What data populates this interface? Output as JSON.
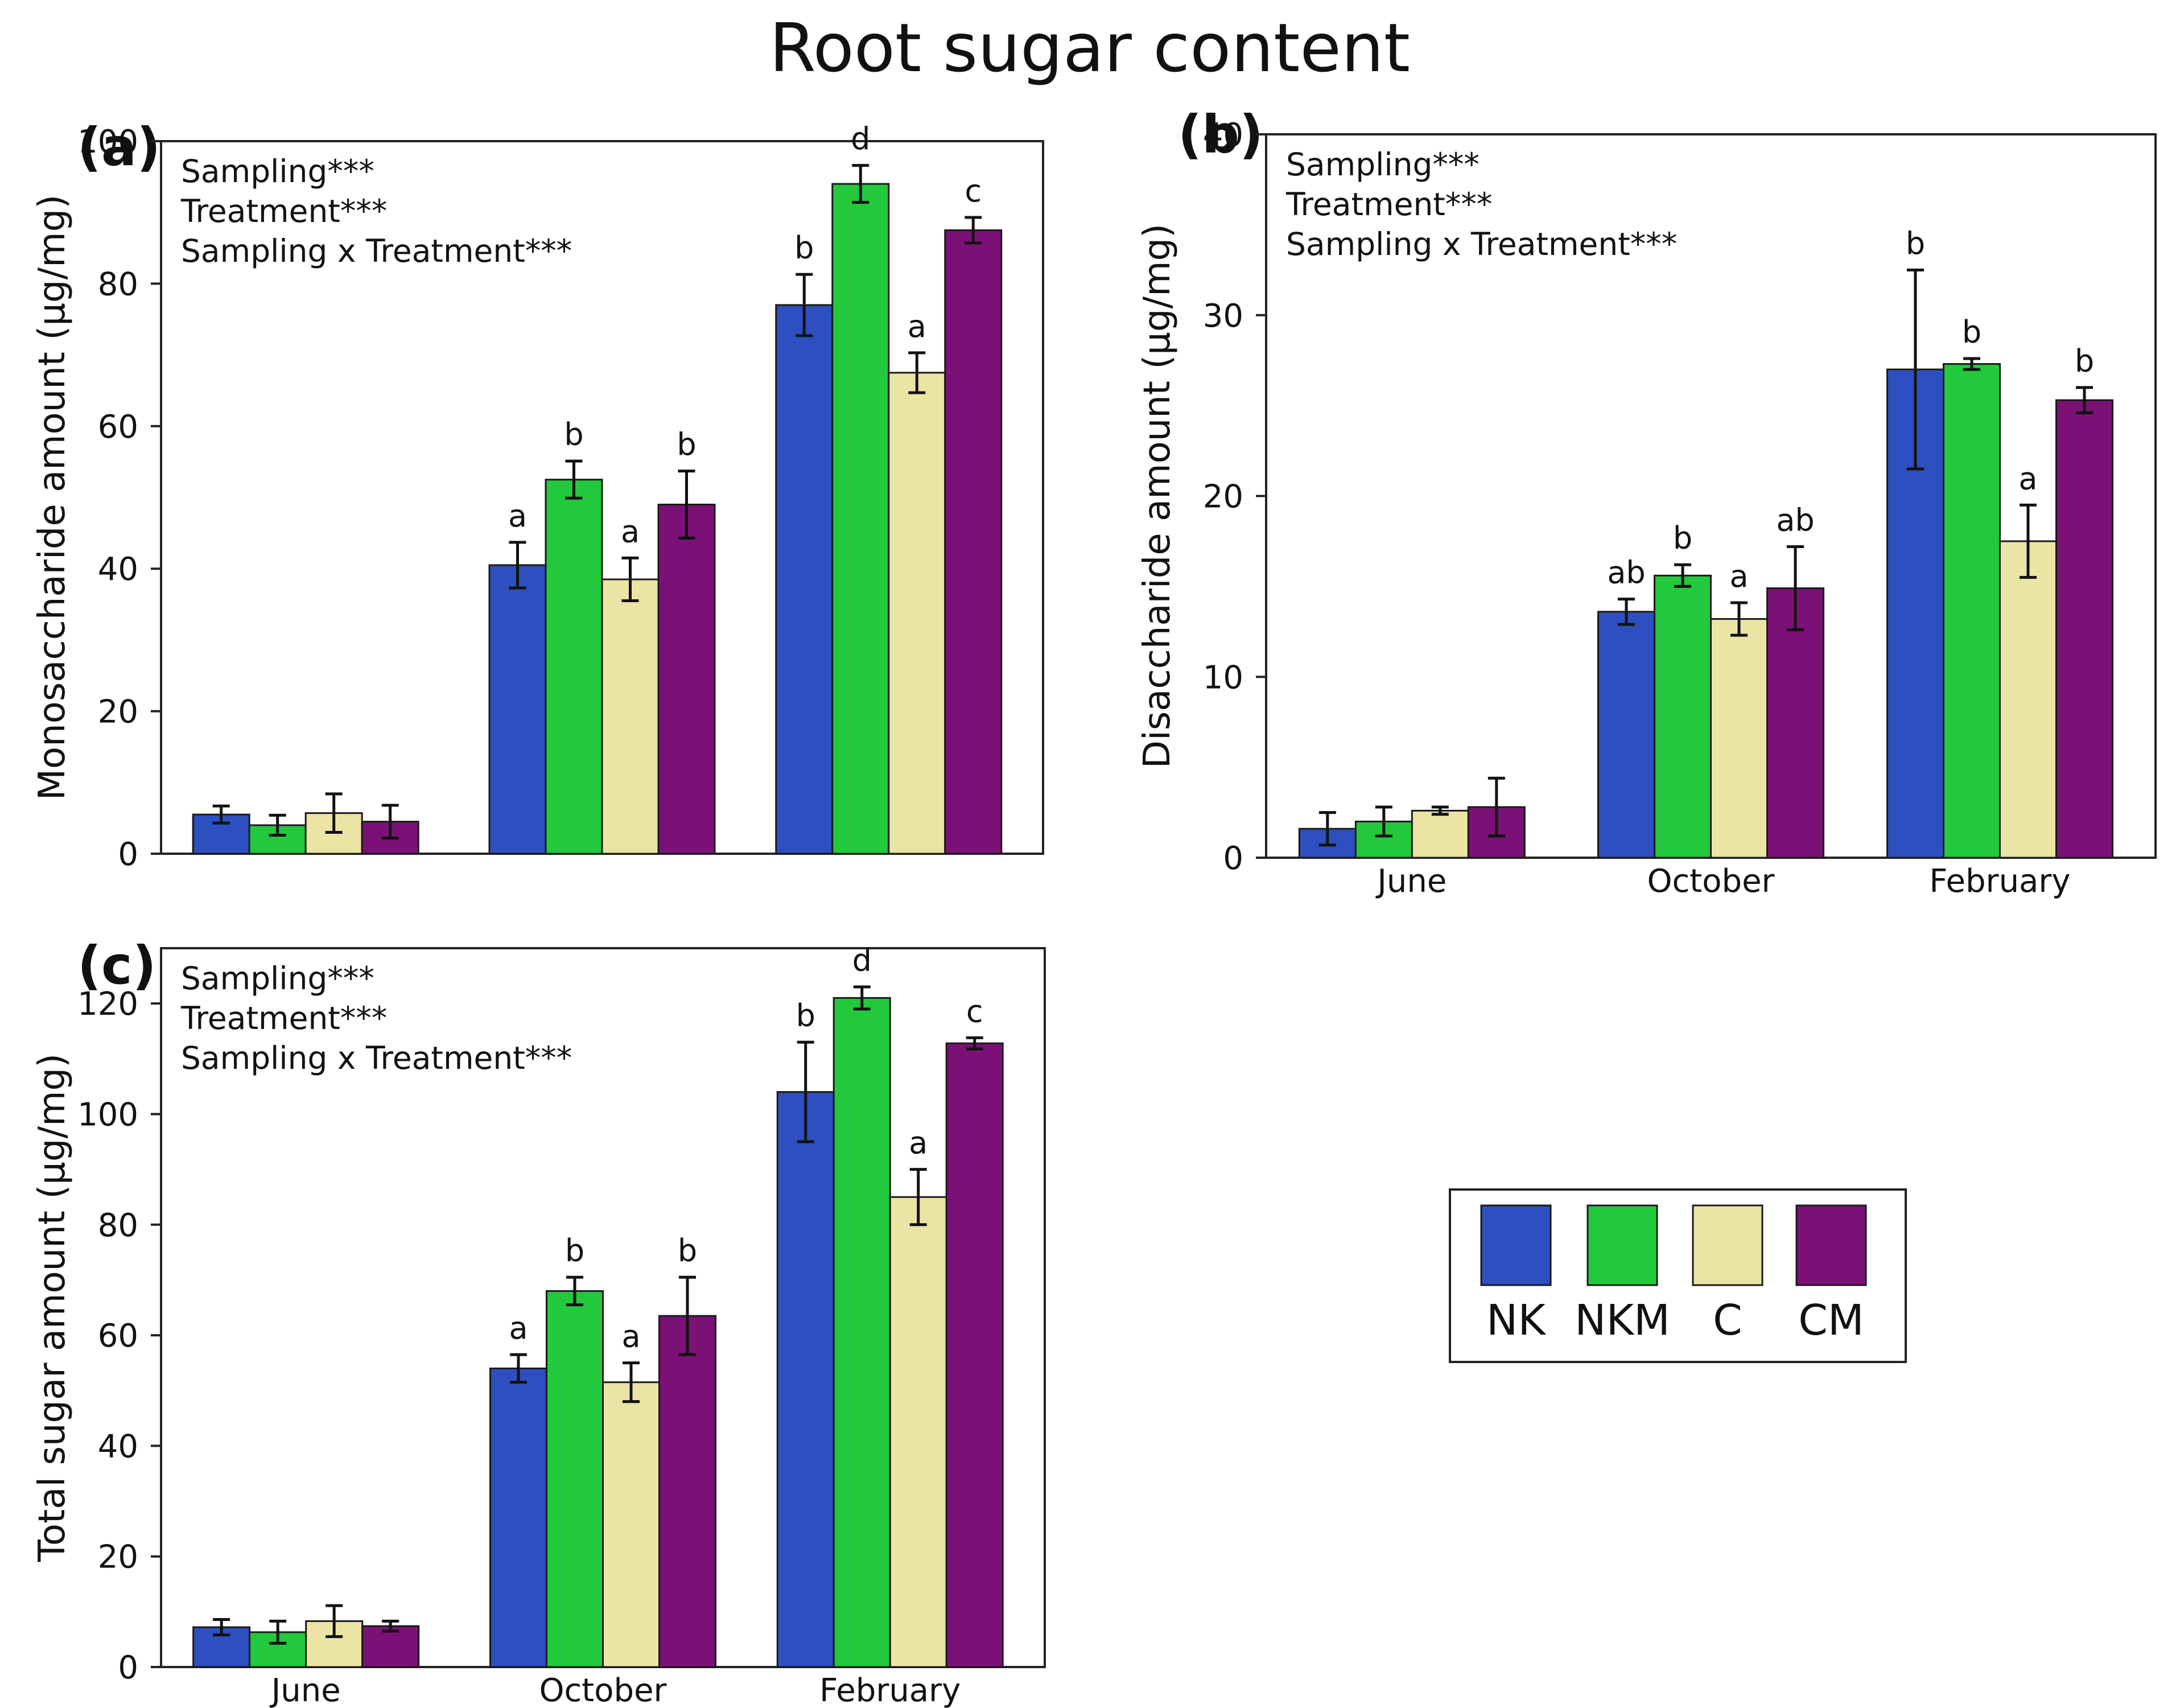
{
  "figure_title": "Root sugar content",
  "chart_data": [
    {
      "id": "a",
      "type": "bar",
      "panel_label": "(a)",
      "title": "",
      "ylabel": "Monosaccharide amount (µg/mg)",
      "ylim": [
        0,
        100
      ],
      "yticks": [
        0,
        20,
        40,
        60,
        80,
        100
      ],
      "show_category_labels": false,
      "categories": [
        "June",
        "October",
        "February"
      ],
      "annotations": [
        "Sampling***",
        "Treatment***",
        "Sampling x Treatment***"
      ],
      "series": [
        {
          "name": "NK",
          "color": "#2d4fbf",
          "values": [
            5.5,
            40.5,
            77
          ],
          "errors": [
            1.2,
            3.2,
            4.3
          ],
          "letters": [
            "",
            "a",
            "b"
          ]
        },
        {
          "name": "NKM",
          "color": "#22c93c",
          "values": [
            4.0,
            52.5,
            94
          ],
          "errors": [
            1.4,
            2.6,
            2.6
          ],
          "letters": [
            "",
            "b",
            "d"
          ]
        },
        {
          "name": "C",
          "color": "#ebe4a4",
          "values": [
            5.7,
            38.5,
            67.5
          ],
          "errors": [
            2.7,
            3.0,
            2.8
          ],
          "letters": [
            "",
            "a",
            "a"
          ]
        },
        {
          "name": "CM",
          "color": "#7b1176",
          "values": [
            4.5,
            49,
            87.5
          ],
          "errors": [
            2.3,
            4.7,
            1.8
          ],
          "letters": [
            "",
            "b",
            "c"
          ]
        }
      ]
    },
    {
      "id": "b",
      "type": "bar",
      "panel_label": "(b)",
      "title": "",
      "ylabel": "Disaccharide amount (µg/mg)",
      "ylim": [
        0,
        40
      ],
      "yticks": [
        0,
        10,
        20,
        30,
        40
      ],
      "show_category_labels": true,
      "categories": [
        "June",
        "October",
        "February"
      ],
      "annotations": [
        "Sampling***",
        "Treatment***",
        "Sampling x Treatment***"
      ],
      "series": [
        {
          "name": "NK",
          "color": "#2d4fbf",
          "values": [
            1.6,
            13.6,
            27
          ],
          "errors": [
            0.9,
            0.7,
            5.5
          ],
          "letters": [
            "",
            "ab",
            "b"
          ]
        },
        {
          "name": "NKM",
          "color": "#22c93c",
          "values": [
            2.0,
            15.6,
            27.3
          ],
          "errors": [
            0.8,
            0.6,
            0.3
          ],
          "letters": [
            "",
            "b",
            "b"
          ]
        },
        {
          "name": "C",
          "color": "#ebe4a4",
          "values": [
            2.6,
            13.2,
            17.5
          ],
          "errors": [
            0.2,
            0.9,
            2.0
          ],
          "letters": [
            "",
            "a",
            "a"
          ]
        },
        {
          "name": "CM",
          "color": "#7b1176",
          "values": [
            2.8,
            14.9,
            25.3
          ],
          "errors": [
            1.6,
            2.3,
            0.7
          ],
          "letters": [
            "",
            "ab",
            "b"
          ]
        }
      ]
    },
    {
      "id": "c",
      "type": "bar",
      "panel_label": "(c)",
      "title": "",
      "ylabel": "Total sugar amount (µg/mg)",
      "ylim": [
        0,
        130
      ],
      "yticks": [
        0,
        20,
        40,
        60,
        80,
        100,
        120
      ],
      "show_category_labels": true,
      "categories": [
        "June",
        "October",
        "February"
      ],
      "annotations": [
        "Sampling***",
        "Treatment***",
        "Sampling x Treatment***"
      ],
      "series": [
        {
          "name": "NK",
          "color": "#2d4fbf",
          "values": [
            7.2,
            54,
            104
          ],
          "errors": [
            1.4,
            2.5,
            9.0
          ],
          "letters": [
            "",
            "a",
            "b"
          ]
        },
        {
          "name": "NKM",
          "color": "#22c93c",
          "values": [
            6.3,
            68,
            121
          ],
          "errors": [
            2.0,
            2.5,
            2.0
          ],
          "letters": [
            "",
            "b",
            "d"
          ]
        },
        {
          "name": "C",
          "color": "#ebe4a4",
          "values": [
            8.3,
            51.5,
            85
          ],
          "errors": [
            2.8,
            3.5,
            5.0
          ],
          "letters": [
            "",
            "a",
            "a"
          ]
        },
        {
          "name": "CM",
          "color": "#7b1176",
          "values": [
            7.4,
            63.5,
            112.8
          ],
          "errors": [
            0.9,
            7.0,
            1.0
          ],
          "letters": [
            "",
            "b",
            "c"
          ]
        }
      ]
    }
  ],
  "legend": {
    "items": [
      {
        "label": "NK",
        "color": "#2d4fbf"
      },
      {
        "label": "NKM",
        "color": "#22c93c"
      },
      {
        "label": "C",
        "color": "#ebe4a4"
      },
      {
        "label": "CM",
        "color": "#7b1176"
      }
    ]
  }
}
